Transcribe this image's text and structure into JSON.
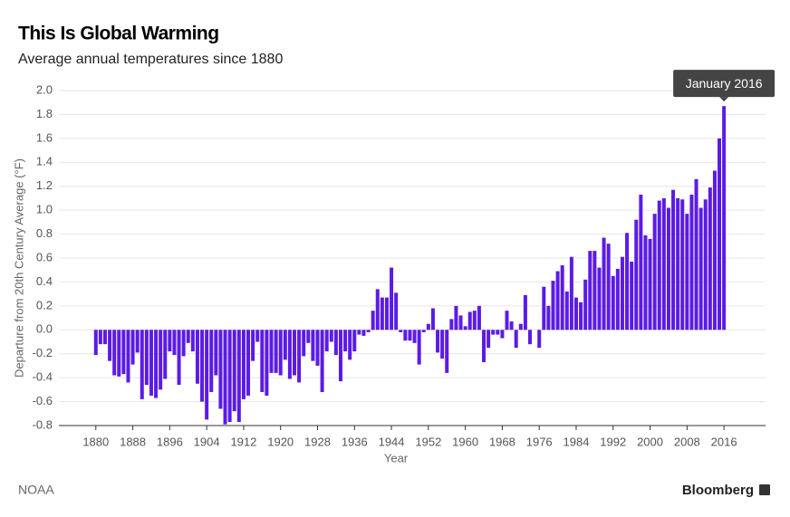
{
  "chart_data": {
    "type": "bar",
    "title": "This Is Global Warming",
    "subtitle": "Average annual temperatures since 1880",
    "y_label": "Departure from 20th Century Average (°F)",
    "x_label": "Year",
    "annotation": "January 2016",
    "source": "NOAA",
    "brand": "Bloomberg",
    "color": "#5b1be6",
    "grid": true,
    "xlim": [
      1872,
      2025
    ],
    "xticks": [
      1880,
      1888,
      1896,
      1904,
      1912,
      1920,
      1928,
      1936,
      1944,
      1952,
      1960,
      1968,
      1976,
      1984,
      1992,
      2000,
      2008,
      2016
    ],
    "ylim": [
      -0.8,
      2.0
    ],
    "yticks": [
      {
        "value": 2.0,
        "label": "2.0"
      },
      1.8,
      1.6,
      1.4,
      1.2,
      {
        "value": 1.0,
        "label": "1.0"
      },
      0.8,
      0.6,
      0.4,
      0.2,
      {
        "value": 0.0,
        "label": "0.0"
      },
      -0.2,
      -0.4,
      -0.6,
      -0.8
    ],
    "x": [
      1880,
      1881,
      1882,
      1883,
      1884,
      1885,
      1886,
      1887,
      1888,
      1889,
      1890,
      1891,
      1892,
      1893,
      1894,
      1895,
      1896,
      1897,
      1898,
      1899,
      1900,
      1901,
      1902,
      1903,
      1904,
      1905,
      1906,
      1907,
      1908,
      1909,
      1910,
      1911,
      1912,
      1913,
      1914,
      1915,
      1916,
      1917,
      1918,
      1919,
      1920,
      1921,
      1922,
      1923,
      1924,
      1925,
      1926,
      1927,
      1928,
      1929,
      1930,
      1931,
      1932,
      1933,
      1934,
      1935,
      1936,
      1937,
      1938,
      1939,
      1940,
      1941,
      1942,
      1943,
      1944,
      1945,
      1946,
      1947,
      1948,
      1949,
      1950,
      1951,
      1952,
      1953,
      1954,
      1955,
      1956,
      1957,
      1958,
      1959,
      1960,
      1961,
      1962,
      1963,
      1964,
      1965,
      1966,
      1967,
      1968,
      1969,
      1970,
      1971,
      1972,
      1973,
      1974,
      1975,
      1976,
      1977,
      1978,
      1979,
      1980,
      1981,
      1982,
      1983,
      1984,
      1985,
      1986,
      1987,
      1988,
      1989,
      1990,
      1991,
      1992,
      1993,
      1994,
      1995,
      1996,
      1997,
      1998,
      1999,
      2000,
      2001,
      2002,
      2003,
      2004,
      2005,
      2006,
      2007,
      2008,
      2009,
      2010,
      2011,
      2012,
      2013,
      2014,
      2015,
      2016
    ],
    "values": [
      -0.21,
      -0.12,
      -0.12,
      -0.26,
      -0.38,
      -0.39,
      -0.37,
      -0.44,
      -0.29,
      -0.19,
      -0.58,
      -0.46,
      -0.55,
      -0.57,
      -0.5,
      -0.41,
      -0.18,
      -0.21,
      -0.46,
      -0.22,
      -0.11,
      -0.18,
      -0.45,
      -0.6,
      -0.75,
      -0.52,
      -0.38,
      -0.66,
      -0.79,
      -0.77,
      -0.68,
      -0.77,
      -0.58,
      -0.55,
      -0.26,
      -0.1,
      -0.52,
      -0.55,
      -0.36,
      -0.36,
      -0.38,
      -0.25,
      -0.41,
      -0.38,
      -0.44,
      -0.22,
      -0.11,
      -0.26,
      -0.3,
      -0.52,
      -0.18,
      -0.1,
      -0.21,
      -0.43,
      -0.18,
      -0.25,
      -0.18,
      -0.04,
      -0.05,
      -0.02,
      0.16,
      0.34,
      0.27,
      0.27,
      0.52,
      0.31,
      -0.02,
      -0.09,
      -0.09,
      -0.11,
      -0.29,
      -0.02,
      0.05,
      0.18,
      -0.19,
      -0.24,
      -0.36,
      0.09,
      0.2,
      0.12,
      0.03,
      0.15,
      0.16,
      0.2,
      -0.27,
      -0.15,
      -0.04,
      -0.04,
      -0.07,
      0.16,
      0.07,
      -0.15,
      0.05,
      0.29,
      -0.12,
      0,
      -0.15,
      0.36,
      0.2,
      0.41,
      0.49,
      0.54,
      0.32,
      0.61,
      0.27,
      0.23,
      0.42,
      0.66,
      0.66,
      0.52,
      0.77,
      0.72,
      0.45,
      0.51,
      0.61,
      0.81,
      0.57,
      0.92,
      1.13,
      0.79,
      0.76,
      0.97,
      1.08,
      1.1,
      1.02,
      1.17,
      1.1,
      1.09,
      0.97,
      1.13,
      1.26,
      1.02,
      1.09,
      1.19,
      1.33,
      1.6,
      1.87
    ]
  }
}
